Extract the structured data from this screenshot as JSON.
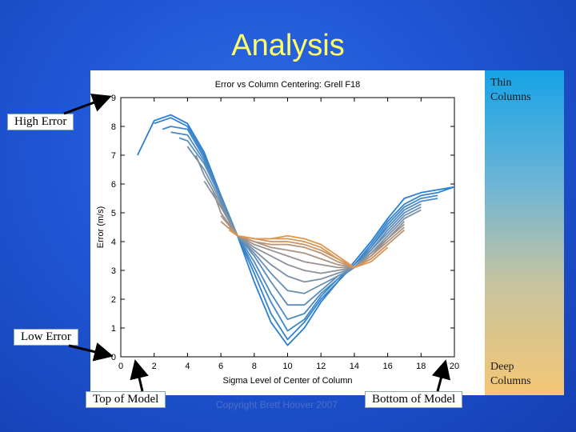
{
  "slide": {
    "title": "Analysis",
    "copyright": "Copyright Brett Hoover 2007",
    "thin_columns": [
      "Thin",
      "Columns"
    ],
    "deep_columns": [
      "Deep",
      "Columns"
    ],
    "callouts": {
      "high_error": "High Error",
      "low_error": "Low Error",
      "top_of_model": "Top of Model",
      "bottom_of_model": "Bottom of Model"
    },
    "colors": {
      "background": "#1f56d6",
      "title": "#ffff66",
      "thin": "#2a7fd4",
      "deep": "#e0944a"
    }
  },
  "chart_data": {
    "type": "line",
    "title": "Error vs Column Centering: Grell F18",
    "xlabel": "Sigma Level of Center of Column",
    "ylabel": "Error (m/s)",
    "xlim": [
      0,
      20
    ],
    "ylim": [
      0,
      9
    ],
    "xticks": [
      "0",
      "2",
      "4",
      "6",
      "8",
      "10",
      "12",
      "14",
      "16",
      "18",
      "20"
    ],
    "yticks": [
      "0",
      "1",
      "2",
      "3",
      "4",
      "5",
      "6",
      "7",
      "8",
      "9"
    ],
    "grid": false,
    "series": [
      {
        "color": "#2a7fd4",
        "x": [
          1,
          2,
          3,
          4,
          5,
          6,
          7,
          8,
          9,
          10,
          11,
          12,
          13,
          14,
          15,
          16,
          17,
          18,
          19,
          20
        ],
        "y": [
          7.0,
          8.2,
          8.4,
          8.1,
          7.1,
          5.6,
          4.2,
          2.6,
          1.2,
          0.4,
          1.0,
          1.9,
          2.6,
          3.3,
          4.0,
          4.8,
          5.5,
          5.7,
          5.8,
          5.9
        ]
      },
      {
        "color": "#3383cf",
        "x": [
          2,
          3,
          4,
          5,
          6,
          7,
          8,
          9,
          10,
          11,
          12,
          13,
          14,
          15,
          16,
          17,
          18,
          19,
          20
        ],
        "y": [
          8.1,
          8.3,
          8.0,
          7.0,
          5.6,
          4.2,
          2.9,
          1.5,
          0.6,
          1.2,
          2.0,
          2.6,
          3.2,
          3.9,
          4.7,
          5.3,
          5.6,
          5.7,
          5.9
        ]
      },
      {
        "color": "#3f87c9",
        "x": [
          2.5,
          3,
          4,
          5,
          6,
          7,
          8,
          9,
          10,
          11,
          12,
          13,
          14,
          15,
          16,
          17,
          18,
          19
        ],
        "y": [
          7.9,
          8.0,
          7.9,
          6.9,
          5.6,
          4.2,
          3.1,
          1.9,
          0.9,
          1.3,
          2.1,
          2.7,
          3.2,
          3.8,
          4.6,
          5.2,
          5.5,
          5.6
        ]
      },
      {
        "color": "#4c8ac2",
        "x": [
          3,
          4,
          5,
          6,
          7,
          8,
          9,
          10,
          11,
          12,
          13,
          14,
          15,
          16,
          17,
          18,
          19
        ],
        "y": [
          7.8,
          7.7,
          6.8,
          5.5,
          4.2,
          3.3,
          2.2,
          1.3,
          1.5,
          2.2,
          2.7,
          3.1,
          3.8,
          4.5,
          5.1,
          5.4,
          5.5
        ]
      },
      {
        "color": "#5a8dbb",
        "x": [
          3.5,
          4,
          5,
          6,
          7,
          8,
          9,
          10,
          11,
          12,
          13,
          14,
          15,
          16,
          17,
          18
        ],
        "y": [
          7.6,
          7.5,
          6.7,
          5.5,
          4.2,
          3.5,
          2.6,
          1.8,
          1.8,
          2.3,
          2.8,
          3.1,
          3.7,
          4.4,
          5.0,
          5.3
        ]
      },
      {
        "color": "#6a8fb2",
        "x": [
          4,
          5,
          6,
          7,
          8,
          9,
          10,
          11,
          12,
          13,
          14,
          15,
          16,
          17,
          18
        ],
        "y": [
          7.3,
          6.5,
          5.4,
          4.2,
          3.6,
          2.9,
          2.3,
          2.2,
          2.5,
          2.8,
          3.1,
          3.7,
          4.3,
          4.9,
          5.2
        ]
      },
      {
        "color": "#7a90a6",
        "x": [
          4.5,
          5,
          6,
          7,
          8,
          9,
          10,
          11,
          12,
          13,
          14,
          15,
          16,
          17,
          18
        ],
        "y": [
          7.0,
          6.3,
          5.3,
          4.2,
          3.7,
          3.2,
          2.8,
          2.6,
          2.7,
          2.9,
          3.1,
          3.6,
          4.2,
          4.8,
          5.1
        ]
      },
      {
        "color": "#8a9199",
        "x": [
          5,
          6,
          7,
          8,
          9,
          10,
          11,
          12,
          13,
          14,
          15,
          16,
          17
        ],
        "y": [
          6.1,
          5.2,
          4.2,
          3.8,
          3.5,
          3.2,
          3.0,
          2.9,
          3.0,
          3.1,
          3.6,
          4.1,
          4.7
        ]
      },
      {
        "color": "#9b918d",
        "x": [
          5.5,
          6,
          7,
          8,
          9,
          10,
          11,
          12,
          13,
          14,
          15,
          16,
          17
        ],
        "y": [
          5.8,
          5.0,
          4.2,
          3.9,
          3.7,
          3.5,
          3.3,
          3.2,
          3.1,
          3.1,
          3.5,
          4.1,
          4.6
        ]
      },
      {
        "color": "#ab9280",
        "x": [
          6,
          7,
          8,
          9,
          10,
          11,
          12,
          13,
          14,
          15,
          16,
          17
        ],
        "y": [
          4.9,
          4.2,
          4.0,
          3.8,
          3.7,
          3.6,
          3.4,
          3.2,
          3.1,
          3.5,
          4.0,
          4.5
        ]
      },
      {
        "color": "#bb9373",
        "x": [
          6,
          7,
          8,
          9,
          10,
          11,
          12,
          13,
          14,
          15,
          16,
          17
        ],
        "y": [
          4.7,
          4.2,
          4.0,
          3.9,
          3.9,
          3.8,
          3.6,
          3.3,
          3.1,
          3.4,
          3.9,
          4.4
        ]
      },
      {
        "color": "#cc9466",
        "x": [
          6.5,
          7,
          8,
          9,
          10,
          11,
          12,
          13,
          14,
          15,
          16
        ],
        "y": [
          4.5,
          4.2,
          4.1,
          4.0,
          4.0,
          3.9,
          3.7,
          3.4,
          3.1,
          3.4,
          3.9
        ]
      },
      {
        "color": "#d89559",
        "x": [
          6.5,
          7,
          8,
          9,
          10,
          11,
          12,
          13,
          14,
          15,
          16
        ],
        "y": [
          4.4,
          4.2,
          4.1,
          4.1,
          4.1,
          4.0,
          3.8,
          3.4,
          3.1,
          3.3,
          3.8
        ]
      },
      {
        "color": "#e0964c",
        "x": [
          7,
          8,
          9,
          10,
          11,
          12,
          13,
          14
        ],
        "y": [
          4.2,
          4.1,
          4.1,
          4.2,
          4.1,
          3.9,
          3.5,
          3.1
        ]
      }
    ]
  }
}
